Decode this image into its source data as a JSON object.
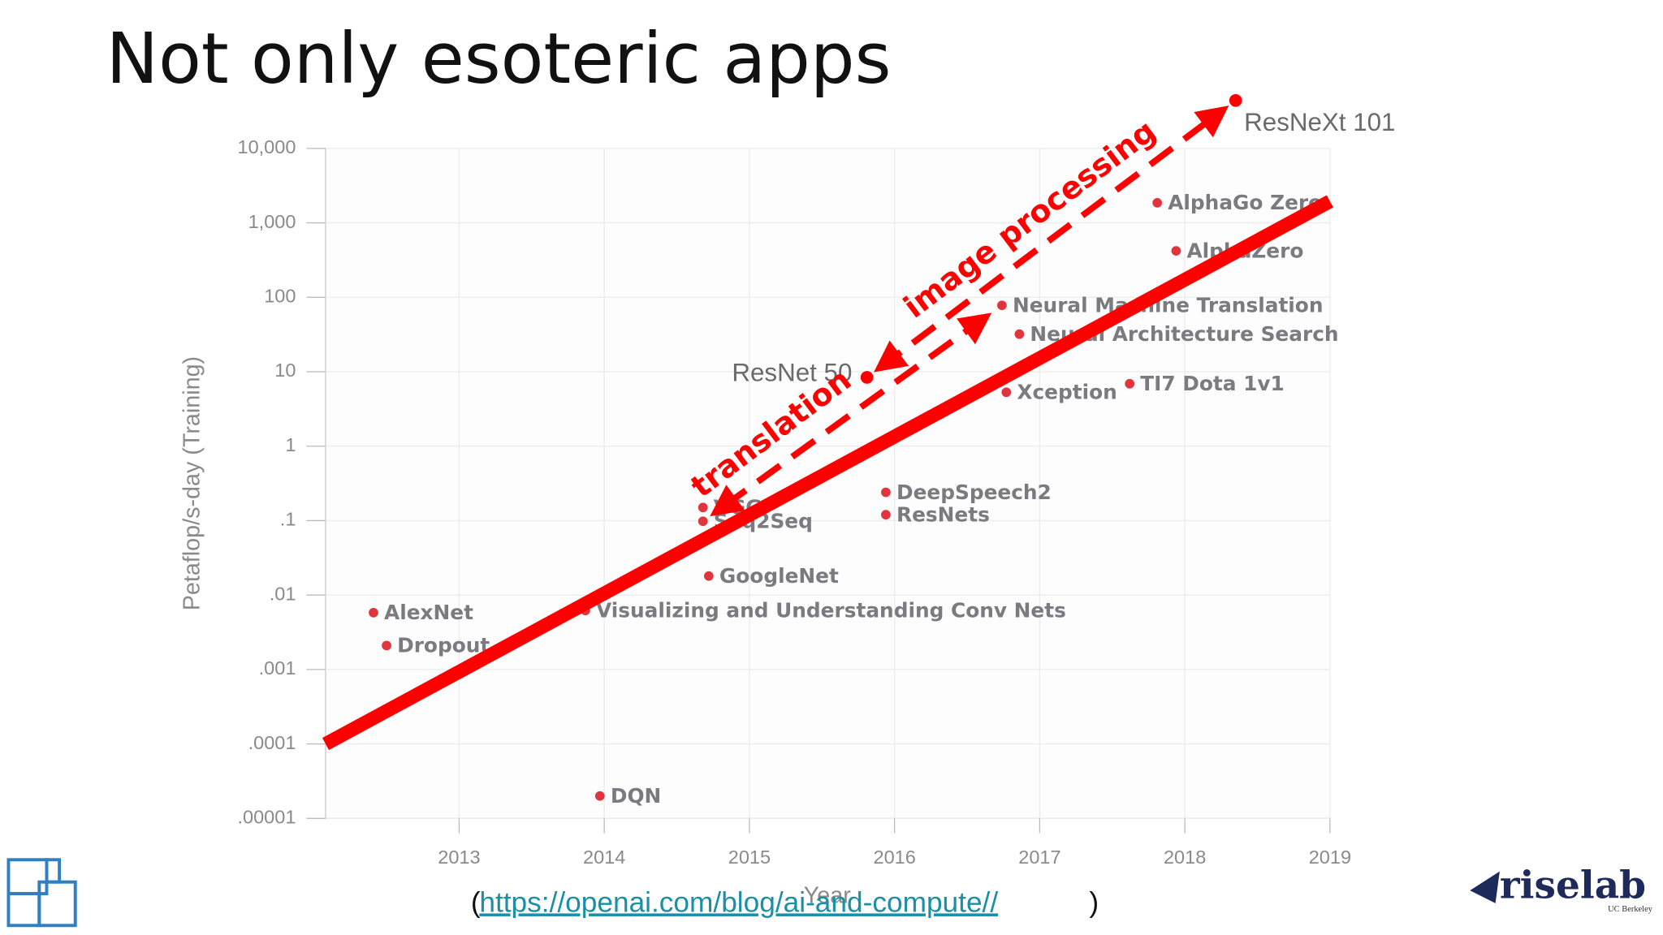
{
  "chart_data": {
    "type": "scatter",
    "title": "Not only esoteric apps",
    "xlabel": "Year",
    "ylabel": "Petaflop/s-day (Training)",
    "log_y": true,
    "grid": true,
    "color": "#e0353d",
    "xlim": [
      2012.08,
      2019
    ],
    "xticks": [
      2013,
      2014,
      2015,
      2016,
      2017,
      2018,
      2019
    ],
    "ylim": [
      1e-05,
      10000
    ],
    "yticks": [
      {
        "value": 10000,
        "label": "10,000"
      },
      {
        "value": 1000,
        "label": "1,000"
      },
      100,
      10,
      1,
      {
        "value": 0.1,
        "label": ".1"
      },
      {
        "value": 0.01,
        "label": ".01"
      },
      {
        "value": 0.001,
        "label": ".001"
      },
      {
        "value": 0.0001,
        "label": ".0001"
      },
      {
        "value": 1e-05,
        "label": ".00001"
      }
    ],
    "point_labels": [
      "AlexNet",
      "Dropout",
      "DQN",
      "Visualizing and Understanding Conv Nets",
      "GoogleNet",
      "Seq2Seq",
      "VGG",
      "DeepSpeech2",
      "ResNets",
      "Xception",
      "Neural Machine Translation",
      "Neural Architecture Search",
      "TI7 Dota 1v1",
      "AlphaGo Zero",
      "AlphaZero"
    ],
    "x": [
      2012.41,
      2012.5,
      2013.97,
      2013.87,
      2014.72,
      2014.68,
      2014.68,
      2015.94,
      2015.94,
      2016.77,
      2016.74,
      2016.86,
      2017.62,
      2017.81,
      2017.94
    ],
    "values": [
      0.0058,
      0.0021,
      2e-05,
      0.0062,
      0.018,
      0.098,
      0.15,
      0.24,
      0.12,
      5.3,
      78,
      32,
      6.9,
      1860,
      420
    ],
    "annotations": [
      {
        "label": "ResNet 50",
        "x": 2015.81,
        "y": 8.4
      },
      {
        "label": "ResNeXt 101",
        "x": 2018.35,
        "y": 44000
      }
    ],
    "trend_line": {
      "x": [
        2012.08,
        2019
      ],
      "y": [
        0.0001,
        1950
      ],
      "color": "#ff0000"
    },
    "notes": [
      "image processing",
      "translation"
    ],
    "annotation_color": "#ff0000"
  },
  "source": {
    "prefix": "(",
    "url": "https://openai.com/blog/ai-and-compute//",
    "suffix": ")"
  },
  "logo": {
    "text": "riselab",
    "subtext": "UC Berkeley"
  }
}
